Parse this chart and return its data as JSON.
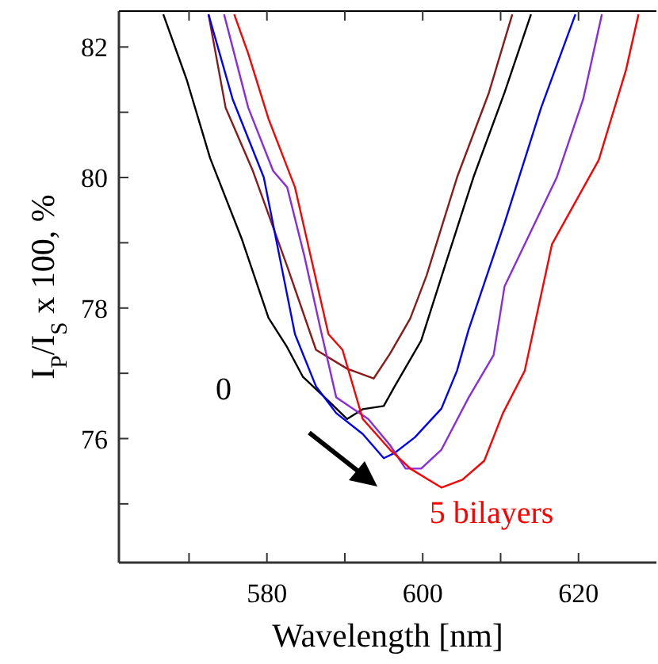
{
  "chart_data": {
    "type": "line",
    "xlabel": "Wavelength [nm]",
    "ylabel": "I$_{P}$/I$_{S}$ x 100, %",
    "xlim": [
      561,
      630
    ],
    "xticks": [
      {
        "value": 570,
        "label": null
      },
      580,
      {
        "value": 590,
        "label": null
      },
      600,
      {
        "value": 610,
        "label": null
      },
      620
    ],
    "ylim": [
      74.1,
      82.55
    ],
    "yticks": [
      {
        "value": 75,
        "label": null
      },
      76,
      {
        "value": 77,
        "label": null
      },
      78,
      {
        "value": 79,
        "label": null
      },
      80,
      {
        "value": 81,
        "label": null
      },
      82
    ],
    "grid": false,
    "marker": "none",
    "line_style": "solid",
    "annotations": [
      "0",
      "5 bilayers"
    ],
    "series": [
      {
        "color": "#000000",
        "x": [
          566.7,
          569.7,
          572.7,
          576.8,
          580.2,
          582.6,
          584.6,
          587.7,
          590.3,
          592.3,
          595,
          596.4,
          599.8,
          603,
          606.5,
          610.5,
          613.9
        ],
        "values": [
          82.5,
          81.5,
          80.3,
          79.05,
          77.85,
          77.4,
          76.95,
          76.6,
          76.3,
          76.45,
          76.5,
          76.8,
          77.5,
          78.7,
          80,
          81.3,
          82.5
        ]
      },
      {
        "color": "#8b1a1a",
        "x": [
          572.5,
          574.7,
          578.2,
          582.6,
          586.3,
          590.3,
          593.7,
          595.8,
          598.4,
          600.5,
          604.4,
          608.5,
          611.5
        ],
        "values": [
          82.5,
          81.07,
          80.1,
          78.64,
          77.36,
          77.07,
          76.92,
          77.3,
          77.84,
          78.5,
          80,
          81.3,
          82.5
        ]
      },
      {
        "color": "#0000ff",
        "x": [
          572.5,
          575.6,
          579.6,
          583.6,
          586.3,
          588.9,
          592.3,
          595,
          596.4,
          599,
          602.4,
          604.4,
          605.9,
          610.5,
          615.2,
          619.6
        ],
        "values": [
          82.5,
          81.2,
          80,
          77.6,
          76.8,
          76.39,
          76.07,
          75.7,
          75.78,
          76.02,
          76.46,
          77.04,
          77.67,
          79.3,
          81.07,
          82.5
        ]
      },
      {
        "color": "#8a2be2",
        "x": [
          574.5,
          577.6,
          580.8,
          582.6,
          584.8,
          586.9,
          588.9,
          593,
          595.8,
          597.8,
          599.8,
          602.4,
          605.9,
          609.1,
          610.5,
          617.2,
          620.6,
          623
        ],
        "values": [
          82.5,
          81.07,
          80.1,
          79.85,
          78.8,
          77.67,
          76.63,
          76.3,
          75.9,
          75.54,
          75.54,
          75.83,
          76.63,
          77.28,
          78.33,
          80,
          81.2,
          82.5
        ]
      },
      {
        "color": "#ff0000",
        "x": [
          575.8,
          577.6,
          580.2,
          583.6,
          587.9,
          589.7,
          592.3,
          595.8,
          598.4,
          601,
          602.4,
          605.1,
          607.9,
          610.3,
          613.1,
          616.6,
          622.6,
          626.1,
          627.7
        ],
        "values": [
          82.5,
          81.9,
          80.9,
          79.85,
          77.6,
          77.36,
          76.3,
          75.83,
          75.54,
          75.35,
          75.25,
          75.37,
          75.66,
          76.39,
          77.04,
          78.98,
          80.27,
          81.65,
          82.5
        ]
      }
    ]
  }
}
